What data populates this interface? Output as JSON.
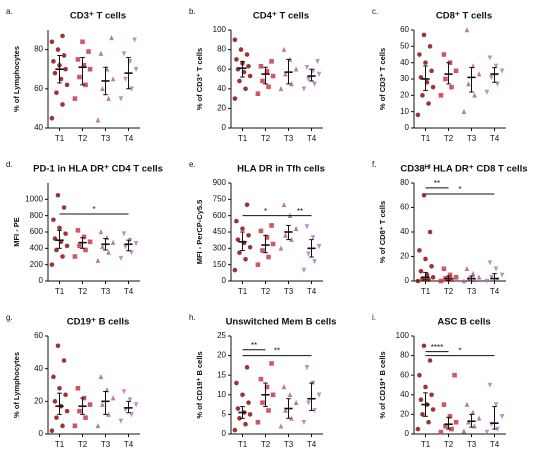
{
  "chart_data": [
    {
      "type": "dotplot",
      "panel": "a.",
      "title": "CD3⁺ T cells",
      "ylabel": "% of Lymphocytes",
      "categories": [
        "T1",
        "T2",
        "T3",
        "T4"
      ],
      "colors": [
        "#8b1010",
        "#c83a4a",
        "#b0648c",
        "#b07ac4"
      ],
      "markers": [
        "circle",
        "square",
        "triangle",
        "triangle-down"
      ],
      "ylim": [
        40,
        90
      ],
      "yticks": [
        40,
        60,
        80
      ],
      "points": [
        [
          45,
          52,
          58,
          62,
          65,
          68,
          70,
          72,
          74,
          77,
          80,
          84,
          87
        ],
        [
          55,
          62,
          66,
          70,
          72,
          75,
          79,
          84
        ],
        [
          44,
          55,
          60,
          65,
          70,
          78,
          86
        ],
        [
          55,
          60,
          65,
          70,
          74,
          78,
          85
        ]
      ],
      "medians": [
        70,
        71,
        64,
        68
      ],
      "q1": [
        63,
        62,
        57,
        60
      ],
      "q3": [
        77,
        76,
        71,
        76
      ],
      "brackets": []
    },
    {
      "type": "dotplot",
      "panel": "b.",
      "title": "CD4⁺ T cells",
      "ylabel": "% of CD3⁺ T cells",
      "categories": [
        "T1",
        "T2",
        "T3",
        "T4"
      ],
      "colors": [
        "#8b1010",
        "#c83a4a",
        "#b0648c",
        "#b07ac4"
      ],
      "markers": [
        "circle",
        "square",
        "triangle",
        "triangle-down"
      ],
      "ylim": [
        0,
        100
      ],
      "yticks": [
        0,
        20,
        40,
        60,
        80,
        100
      ],
      "points": [
        [
          30,
          40,
          48,
          53,
          57,
          60,
          63,
          66,
          70,
          75,
          80,
          90
        ],
        [
          35,
          42,
          48,
          53,
          58,
          63,
          68
        ],
        [
          40,
          45,
          55,
          60,
          70,
          80
        ],
        [
          40,
          45,
          50,
          55,
          58,
          62,
          68
        ]
      ],
      "medians": [
        61,
        55,
        57,
        53
      ],
      "q1": [
        52,
        45,
        45,
        48
      ],
      "q3": [
        68,
        62,
        70,
        60
      ],
      "brackets": []
    },
    {
      "type": "dotplot",
      "panel": "c.",
      "title": "CD8⁺ T cells",
      "ylabel": "% of CD3⁺ T cells",
      "categories": [
        "T1",
        "T2",
        "T3",
        "T4"
      ],
      "colors": [
        "#8b1010",
        "#c83a4a",
        "#b0648c",
        "#b07ac4"
      ],
      "markers": [
        "circle",
        "square",
        "triangle",
        "triangle-down"
      ],
      "ylim": [
        0,
        60
      ],
      "yticks": [
        0,
        10,
        20,
        30,
        40,
        50,
        60
      ],
      "points": [
        [
          8,
          15,
          20,
          25,
          28,
          31,
          35,
          40,
          45,
          50,
          57
        ],
        [
          20,
          25,
          30,
          35,
          40,
          45
        ],
        [
          10,
          20,
          27,
          33,
          38,
          60
        ],
        [
          22,
          27,
          31,
          35,
          38,
          43
        ]
      ],
      "medians": [
        30,
        33,
        31,
        33
      ],
      "q1": [
        23,
        27,
        22,
        28
      ],
      "q3": [
        38,
        40,
        37,
        37
      ],
      "brackets": []
    },
    {
      "type": "dotplot",
      "panel": "d.",
      "title": "PD-1 in HLA DR⁺ CD4 T cells",
      "ylabel": "MFI - PE",
      "categories": [
        "T1",
        "T2",
        "T3",
        "T4"
      ],
      "colors": [
        "#8b1010",
        "#c83a4a",
        "#b0648c",
        "#b07ac4"
      ],
      "markers": [
        "circle",
        "square",
        "triangle",
        "triangle-down"
      ],
      "ylim": [
        0,
        1200
      ],
      "yticks": [
        0,
        200,
        400,
        600,
        800,
        1000
      ],
      "points": [
        [
          200,
          300,
          380,
          430,
          480,
          520,
          580,
          650,
          750,
          900,
          1050
        ],
        [
          300,
          380,
          430,
          480,
          540,
          620
        ],
        [
          250,
          350,
          420,
          470,
          530,
          600
        ],
        [
          280,
          350,
          420,
          460,
          500,
          580
        ]
      ],
      "medians": [
        500,
        470,
        450,
        450
      ],
      "q1": [
        400,
        400,
        380,
        370
      ],
      "q3": [
        620,
        530,
        520,
        500
      ],
      "brackets": [
        {
          "from": 0,
          "to": 3,
          "y": 820,
          "label": "*"
        }
      ]
    },
    {
      "type": "dotplot",
      "panel": "e.",
      "title": "HLA DR in Tfh cells",
      "ylabel": "MFI - PerCP-Cy5.5",
      "categories": [
        "T1",
        "T2",
        "T3",
        "T4"
      ],
      "colors": [
        "#8b1010",
        "#c83a4a",
        "#b0648c",
        "#b07ac4"
      ],
      "markers": [
        "circle",
        "square",
        "triangle",
        "triangle-down"
      ],
      "ylim": [
        0,
        900
      ],
      "yticks": [
        0,
        150,
        300,
        450,
        600,
        750,
        900
      ],
      "points": [
        [
          100,
          200,
          260,
          310,
          350,
          380,
          420,
          480,
          550,
          700
        ],
        [
          150,
          220,
          280,
          340,
          400,
          460,
          510
        ],
        [
          300,
          380,
          420,
          480,
          600,
          700
        ],
        [
          100,
          180,
          250,
          320,
          400,
          500
        ]
      ],
      "medians": [
        360,
        330,
        450,
        300
      ],
      "q1": [
        280,
        260,
        380,
        220
      ],
      "q3": [
        450,
        420,
        510,
        380
      ],
      "brackets": [
        {
          "from": 0,
          "to": 2,
          "y": 600,
          "label": "*"
        },
        {
          "from": 2,
          "to": 3,
          "y": 600,
          "label": "**"
        }
      ]
    },
    {
      "type": "dotplot",
      "panel": "f.",
      "title": "CD38ᴴⁱ HLA DR⁺ CD8 T cells",
      "ylabel": "% of CD8⁺ T cells",
      "categories": [
        "T1",
        "T2",
        "T3",
        "T4"
      ],
      "colors": [
        "#8b1010",
        "#c83a4a",
        "#b0648c",
        "#b07ac4"
      ],
      "markers": [
        "circle",
        "square",
        "triangle",
        "triangle-down"
      ],
      "ylim": [
        0,
        80
      ],
      "yticks": [
        0,
        20,
        40,
        60,
        80
      ],
      "points": [
        [
          0,
          1,
          2,
          3,
          5,
          8,
          12,
          18,
          25,
          40,
          70
        ],
        [
          0,
          1,
          2,
          3,
          5,
          10
        ],
        [
          0,
          1,
          2,
          3,
          6,
          10
        ],
        [
          0,
          1,
          3,
          5,
          10,
          15
        ]
      ],
      "medians": [
        3,
        2,
        2,
        2
      ],
      "q1": [
        1,
        0.5,
        0,
        0
      ],
      "q3": [
        7,
        4,
        4,
        6
      ],
      "brackets": [
        {
          "from": 0,
          "to": 1,
          "y": 76,
          "label": "**"
        },
        {
          "from": 0,
          "to": 3,
          "y": 71,
          "label": "*"
        }
      ]
    },
    {
      "type": "dotplot",
      "panel": "g.",
      "title": "CD19⁺ B cells",
      "ylabel": "% of Lymphocytes",
      "categories": [
        "T1",
        "T2",
        "T3",
        "T4"
      ],
      "colors": [
        "#8b1010",
        "#c83a4a",
        "#b0648c",
        "#b07ac4"
      ],
      "markers": [
        "circle",
        "square",
        "triangle",
        "triangle-down"
      ],
      "ylim": [
        0,
        60
      ],
      "yticks": [
        0,
        20,
        40,
        60
      ],
      "points": [
        [
          2,
          5,
          10,
          14,
          17,
          20,
          24,
          28,
          35,
          45,
          54
        ],
        [
          5,
          10,
          14,
          18,
          22,
          28
        ],
        [
          5,
          12,
          18,
          22,
          27,
          35
        ],
        [
          8,
          12,
          15,
          18,
          21,
          26
        ]
      ],
      "medians": [
        17,
        17,
        20,
        16
      ],
      "q1": [
        12,
        12,
        12,
        13
      ],
      "q3": [
        25,
        22,
        26,
        20
      ],
      "brackets": []
    },
    {
      "type": "dotplot",
      "panel": "h.",
      "title": "Unswitched Mem B cells",
      "ylabel": "% of CD19⁺ B cells",
      "categories": [
        "T1",
        "T2",
        "T3",
        "T4"
      ],
      "colors": [
        "#8b1010",
        "#c83a4a",
        "#b0648c",
        "#b07ac4"
      ],
      "markers": [
        "circle",
        "square",
        "triangle",
        "triangle-down"
      ],
      "ylim": [
        0,
        25
      ],
      "yticks": [
        0,
        5,
        10,
        15,
        20,
        25
      ],
      "points": [
        [
          1,
          2.5,
          4,
          5,
          5.5,
          6.5,
          8,
          10,
          13,
          17
        ],
        [
          3,
          6,
          8,
          10,
          12,
          14,
          18
        ],
        [
          2,
          4,
          6,
          8,
          10,
          12
        ],
        [
          3,
          6,
          8,
          10,
          13,
          17
        ]
      ],
      "medians": [
        5.5,
        10,
        6.5,
        9
      ],
      "q1": [
        4,
        7,
        4,
        6
      ],
      "q3": [
        7,
        13,
        9,
        13
      ],
      "brackets": [
        {
          "from": 0,
          "to": 1,
          "y": 21.5,
          "label": "**"
        },
        {
          "from": 0,
          "to": 3,
          "y": 20,
          "label": "**"
        }
      ]
    },
    {
      "type": "dotplot",
      "panel": "i.",
      "title": "ASC B cells",
      "ylabel": "% of CD19⁺ B cells",
      "categories": [
        "T1",
        "T2",
        "T3",
        "T4"
      ],
      "colors": [
        "#8b1010",
        "#c83a4a",
        "#b0648c",
        "#b07ac4"
      ],
      "markers": [
        "circle",
        "square",
        "triangle",
        "triangle-down"
      ],
      "ylim": [
        0,
        100
      ],
      "yticks": [
        0,
        20,
        40,
        60,
        80,
        100
      ],
      "points": [
        [
          5,
          12,
          20,
          25,
          30,
          35,
          40,
          48,
          60,
          75,
          90
        ],
        [
          2,
          5,
          8,
          12,
          18,
          30,
          60
        ],
        [
          3,
          8,
          12,
          16,
          22,
          30
        ],
        [
          2,
          5,
          10,
          18,
          30,
          50
        ]
      ],
      "medians": [
        30,
        10,
        13,
        11
      ],
      "q1": [
        18,
        5,
        7,
        5
      ],
      "q3": [
        42,
        17,
        20,
        28
      ],
      "brackets": [
        {
          "from": 0,
          "to": 1,
          "y": 84,
          "label": "****"
        },
        {
          "from": 0,
          "to": 3,
          "y": 80,
          "label": "*"
        }
      ]
    }
  ]
}
